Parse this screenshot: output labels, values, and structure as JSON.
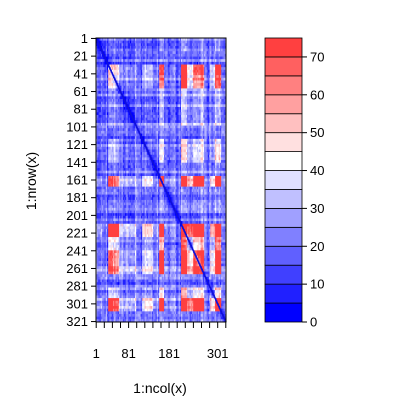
{
  "chart_data": {
    "type": "heatmap",
    "title": "",
    "xlabel": "1:ncol(x)",
    "ylabel": "1:nrow(x)",
    "x_tick_labels": [
      "1",
      "81",
      "181",
      "301"
    ],
    "y_tick_labels": [
      "1",
      "21",
      "41",
      "61",
      "81",
      "101",
      "121",
      "141",
      "161",
      "181",
      "201",
      "221",
      "241",
      "261",
      "281",
      "301",
      "321"
    ],
    "n_rows": 321,
    "n_cols": 321,
    "diagonal_value": 0,
    "colorbar": {
      "range": [
        0,
        75
      ],
      "breaks": [
        0,
        5,
        10,
        15,
        20,
        25,
        30,
        35,
        40,
        45,
        50,
        55,
        60,
        65,
        70,
        75
      ],
      "tick_labels": [
        "0",
        "10",
        "20",
        "30",
        "40",
        "50",
        "60",
        "70"
      ],
      "colors": [
        "#0000FF",
        "#2020FF",
        "#4040FF",
        "#6060FF",
        "#8080FF",
        "#A0A0FF",
        "#C0C0FF",
        "#E0E0FF",
        "#FFFFFF",
        "#FFE0E0",
        "#FFC0C0",
        "#FFA0A0",
        "#FF8080",
        "#FF6060",
        "#FF4040",
        "#FF0000"
      ]
    }
  }
}
